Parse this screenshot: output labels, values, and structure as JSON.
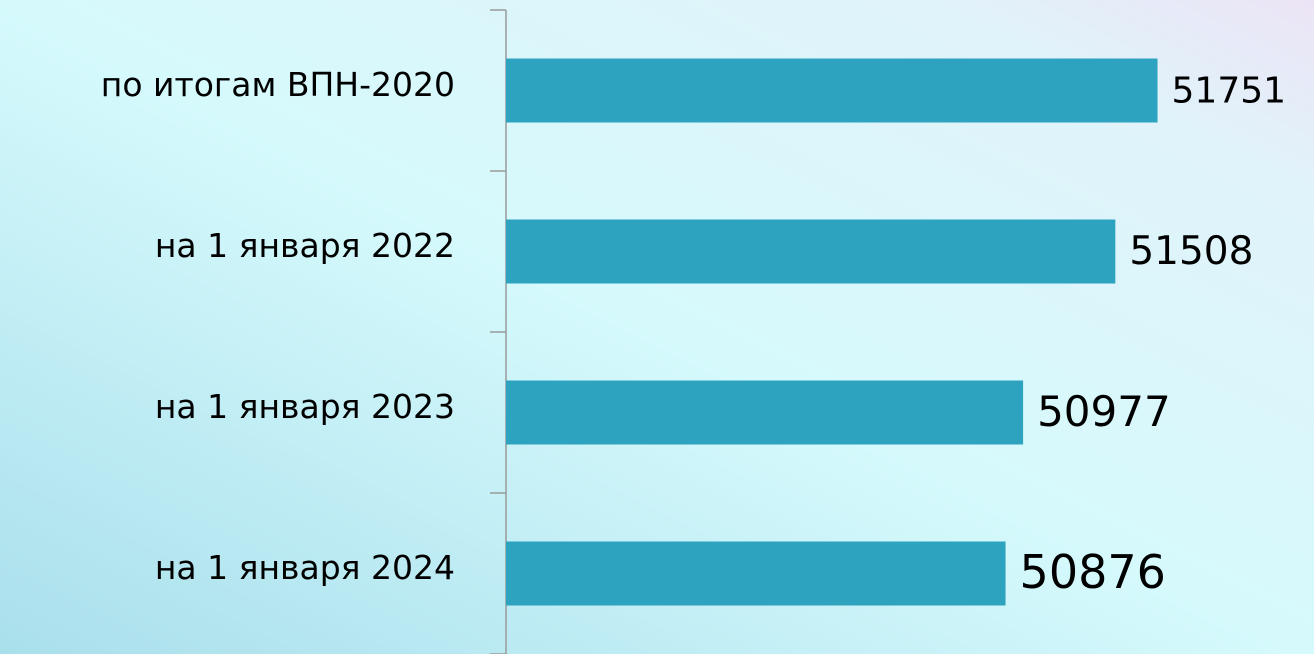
{
  "chart_data": {
    "type": "bar",
    "orientation": "horizontal",
    "categories": [
      "по итогам ВПН-2020",
      "на 1 января 2022",
      "на 1 января 2023",
      "на 1 января 2024"
    ],
    "values": [
      51751,
      51508,
      50977,
      50876
    ],
    "color": "#2ea3c0",
    "xlim": [
      48000,
      52600
    ]
  }
}
